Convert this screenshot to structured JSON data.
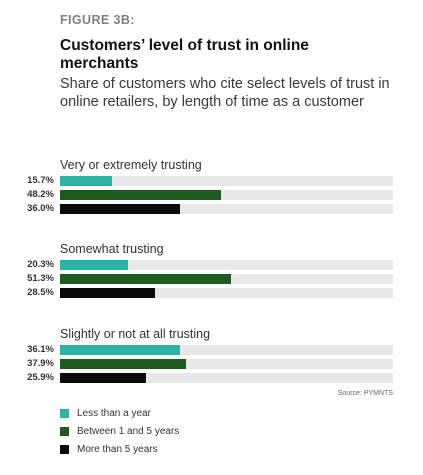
{
  "figure_label": "FIGURE 3B:",
  "chart_data": {
    "type": "bar",
    "orientation": "horizontal",
    "title": "Customers’ level of trust in online merchants",
    "subtitle": "Share of customers who cite select levels of trust in online retailers, by length of time as a customer",
    "xlim": [
      0,
      100
    ],
    "unit": "%",
    "grid": false,
    "legend_placement": "bottom-left",
    "categories": [
      "Very or extremely trusting",
      "Somewhat trusting",
      "Slightly or not at all trusting"
    ],
    "series": [
      {
        "name": "Less than a year",
        "color": "#2bb3a3",
        "values": [
          15.7,
          20.3,
          36.1
        ],
        "labels": [
          "15.7%",
          "20.3%",
          "36.1%"
        ]
      },
      {
        "name": "Between 1 and 5 years",
        "color": "#1f5b1e",
        "values": [
          48.2,
          51.3,
          37.9
        ],
        "labels": [
          "48.2%",
          "51.3%",
          "37.9%"
        ]
      },
      {
        "name": "More than 5 years",
        "color": "#0a0a0a",
        "values": [
          36.0,
          28.5,
          25.9
        ],
        "labels": [
          "36.0%",
          "28.5%",
          "25.9%"
        ]
      }
    ]
  },
  "source": "Source: PYMNTS"
}
